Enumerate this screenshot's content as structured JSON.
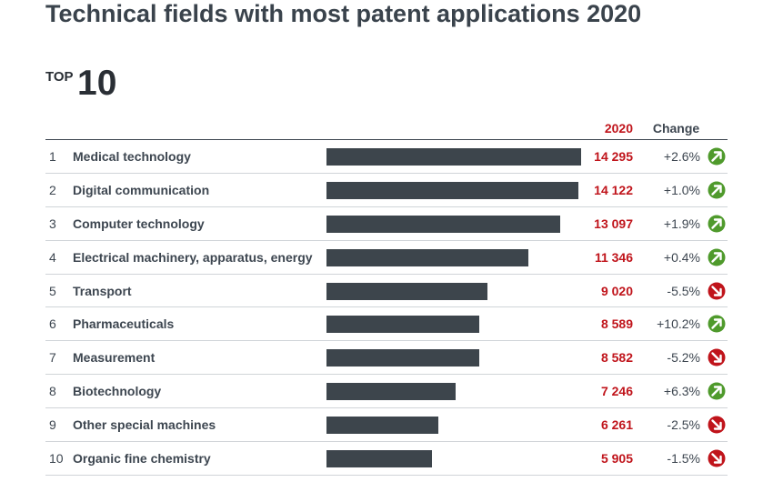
{
  "title": "Technical fields with most patent applications 2020",
  "badge": {
    "word": "TOP",
    "number": "10"
  },
  "header": {
    "year": "2020",
    "change": "Change"
  },
  "colors": {
    "bar": "#3d454c",
    "value": "#c0141b",
    "up": "#4f9a2c",
    "down": "#c0141b"
  },
  "chart_data": {
    "type": "bar",
    "orientation": "horizontal",
    "title": "Technical fields with most patent applications 2020",
    "series_name": "2020",
    "xlim": [
      0,
      14295
    ],
    "rows": [
      {
        "rank": "1",
        "label": "Medical technology",
        "value": 14295,
        "value_text": "14 295",
        "change": "+2.6%",
        "direction": "up"
      },
      {
        "rank": "2",
        "label": "Digital communication",
        "value": 14122,
        "value_text": "14 122",
        "change": "+1.0%",
        "direction": "up"
      },
      {
        "rank": "3",
        "label": "Computer technology",
        "value": 13097,
        "value_text": "13 097",
        "change": "+1.9%",
        "direction": "up"
      },
      {
        "rank": "4",
        "label": "Electrical machinery, apparatus, energy",
        "value": 11346,
        "value_text": "11 346",
        "change": "+0.4%",
        "direction": "up"
      },
      {
        "rank": "5",
        "label": "Transport",
        "value": 9020,
        "value_text": "9 020",
        "change": "-5.5%",
        "direction": "down"
      },
      {
        "rank": "6",
        "label": "Pharmaceuticals",
        "value": 8589,
        "value_text": "8 589",
        "change": "+10.2%",
        "direction": "up"
      },
      {
        "rank": "7",
        "label": "Measurement",
        "value": 8582,
        "value_text": "8 582",
        "change": "-5.2%",
        "direction": "down"
      },
      {
        "rank": "8",
        "label": "Biotechnology",
        "value": 7246,
        "value_text": "7 246",
        "change": "+6.3%",
        "direction": "up"
      },
      {
        "rank": "9",
        "label": "Other special machines",
        "value": 6261,
        "value_text": "6 261",
        "change": "-2.5%",
        "direction": "down"
      },
      {
        "rank": "10",
        "label": "Organic fine chemistry",
        "value": 5905,
        "value_text": "5 905",
        "change": "-1.5%",
        "direction": "down"
      }
    ]
  }
}
